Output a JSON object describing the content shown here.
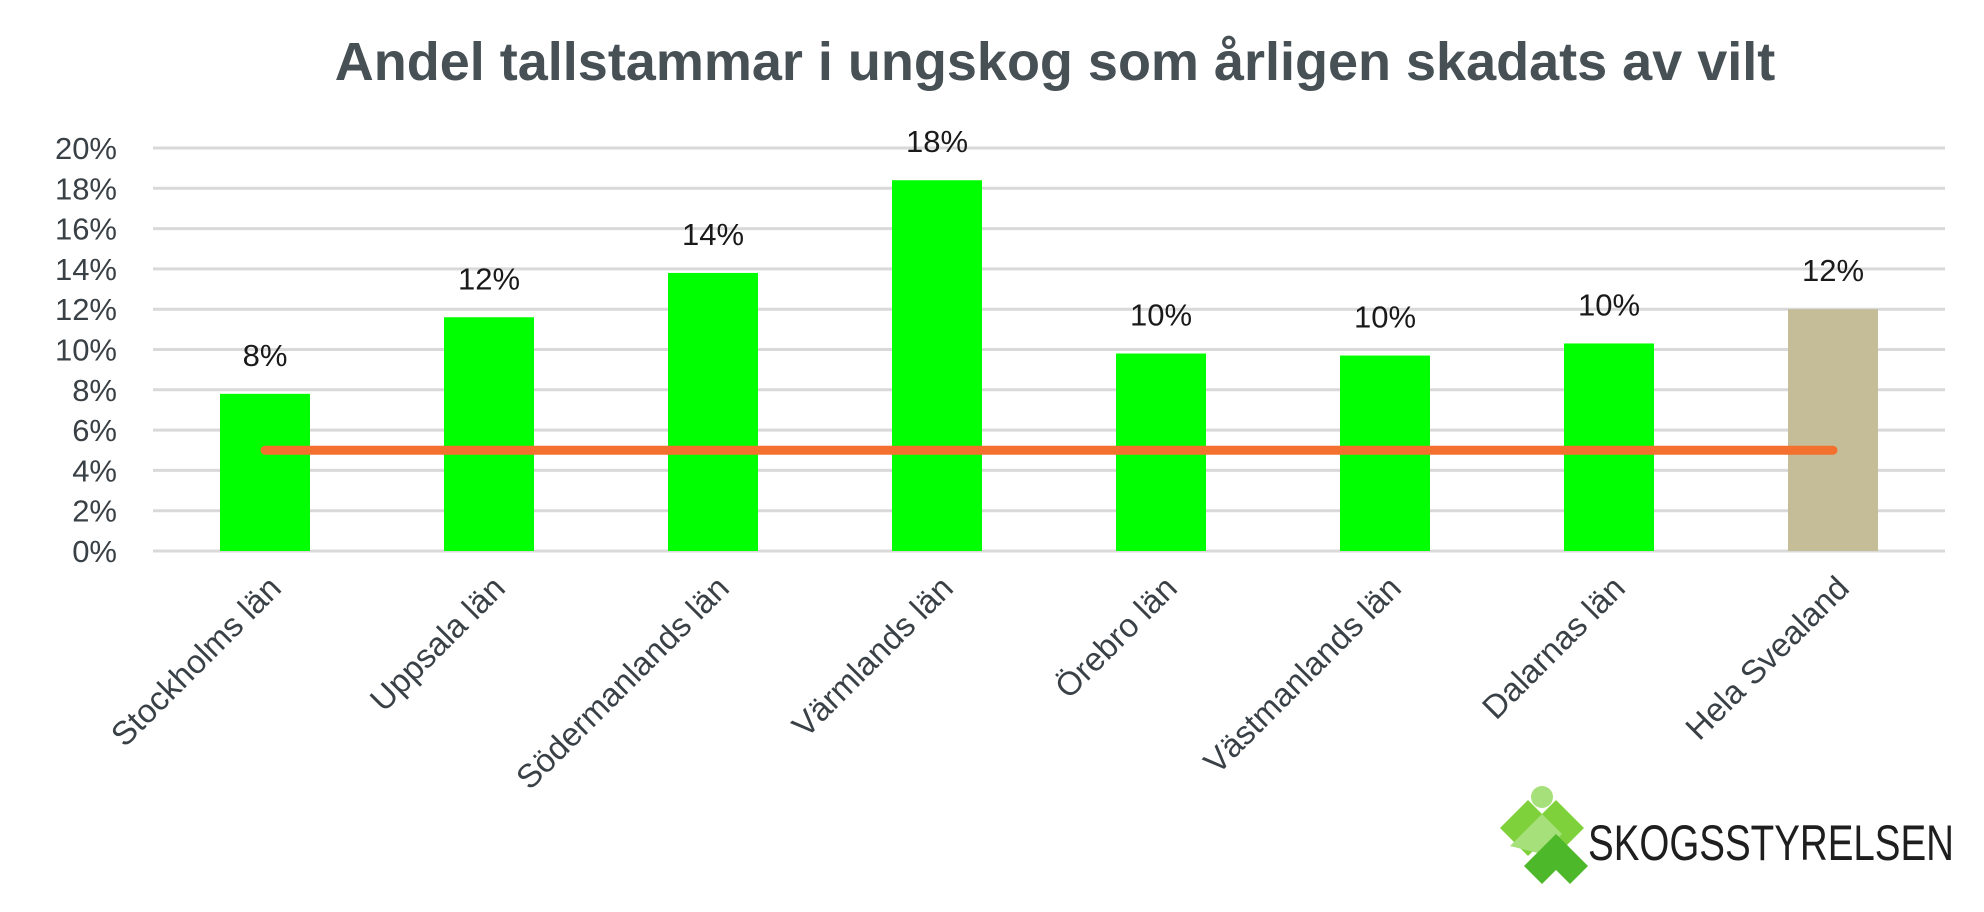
{
  "chart_data": {
    "type": "bar",
    "title": "Andel tallstammar i ungskog som årligen skadats av vilt",
    "categories": [
      "Stockholms län",
      "Uppsala län",
      "Södermanlands län",
      "Värmlands län",
      "Örebro län",
      "Västmanlands län",
      "Dalarnas län",
      "Hela Svealand"
    ],
    "values": [
      7.8,
      11.6,
      13.8,
      18.4,
      9.8,
      9.7,
      10.3,
      12.0
    ],
    "data_labels": [
      "8%",
      "12%",
      "14%",
      "18%",
      "10%",
      "10%",
      "10%",
      "12%"
    ],
    "bar_colors": [
      "#00ff00",
      "#00ff00",
      "#00ff00",
      "#00ff00",
      "#00ff00",
      "#00ff00",
      "#00ff00",
      "#c4bd97"
    ],
    "reference_line": {
      "value": 5,
      "color": "#f4702f"
    },
    "ylim": [
      0,
      20
    ],
    "yticks": [
      0,
      2,
      4,
      6,
      8,
      10,
      12,
      14,
      16,
      18,
      20
    ],
    "ytick_labels": [
      "0%",
      "2%",
      "4%",
      "6%",
      "8%",
      "10%",
      "12%",
      "14%",
      "16%",
      "18%",
      "20%"
    ],
    "grid": true,
    "xlabel": "",
    "ylabel": ""
  },
  "logo": {
    "text": "SKOGSSTYRELSEN",
    "icon": "skogsstyrelsen-leaf-logo-icon"
  },
  "colors": {
    "title": "#465055",
    "grid": "#d9d9d9",
    "axis_text": "#3a4146"
  }
}
